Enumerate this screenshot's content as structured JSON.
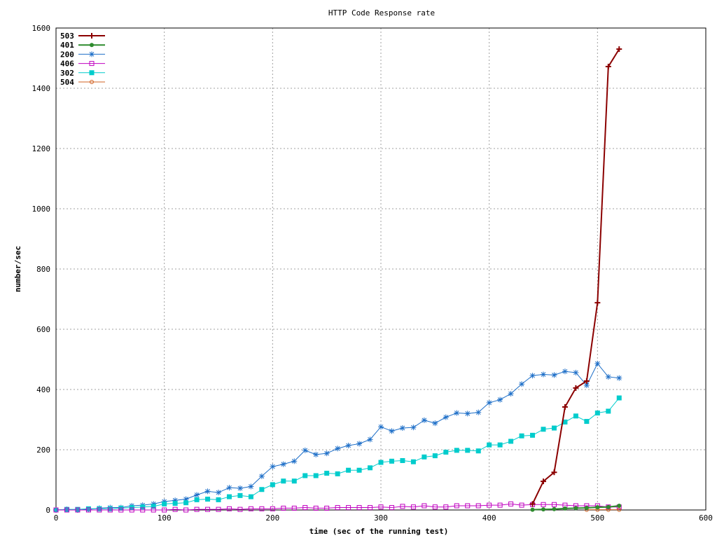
{
  "chart_data": {
    "type": "line",
    "title": "HTTP Code Response rate",
    "xlabel": "time (sec of the running test)",
    "ylabel": "number/sec",
    "xlim": [
      0,
      600
    ],
    "ylim": [
      0,
      1600
    ],
    "x_ticks": [
      0,
      100,
      200,
      300,
      400,
      500,
      600
    ],
    "y_ticks": [
      0,
      200,
      400,
      600,
      800,
      1000,
      1200,
      1400,
      1600
    ],
    "grid": true,
    "legend_position": "top-left",
    "series": [
      {
        "name": "503",
        "color": "#8b0000",
        "marker": "plus",
        "points": [
          [
            440,
            20
          ],
          [
            450,
            95
          ],
          [
            460,
            125
          ],
          [
            470,
            342
          ],
          [
            480,
            405
          ],
          [
            490,
            428
          ],
          [
            500,
            688
          ],
          [
            510,
            1472
          ],
          [
            520,
            1530
          ]
        ]
      },
      {
        "name": "401",
        "color": "#2e8b2e",
        "marker": "filled-circle",
        "points": [
          [
            440,
            1
          ],
          [
            450,
            2
          ],
          [
            460,
            3
          ],
          [
            470,
            5
          ],
          [
            480,
            6
          ],
          [
            490,
            7
          ],
          [
            500,
            9
          ],
          [
            510,
            10
          ],
          [
            520,
            14
          ]
        ]
      },
      {
        "name": "200",
        "color": "#1e6fc8",
        "marker": "star",
        "points": [
          [
            0,
            0
          ],
          [
            10,
            2
          ],
          [
            20,
            0
          ],
          [
            30,
            2
          ],
          [
            40,
            6
          ],
          [
            50,
            8
          ],
          [
            60,
            8
          ],
          [
            70,
            14
          ],
          [
            80,
            16
          ],
          [
            90,
            20
          ],
          [
            100,
            28
          ],
          [
            110,
            32
          ],
          [
            120,
            36
          ],
          [
            130,
            50
          ],
          [
            140,
            62
          ],
          [
            150,
            58
          ],
          [
            160,
            74
          ],
          [
            170,
            72
          ],
          [
            180,
            78
          ],
          [
            190,
            112
          ],
          [
            200,
            144
          ],
          [
            210,
            152
          ],
          [
            220,
            162
          ],
          [
            230,
            198
          ],
          [
            240,
            184
          ],
          [
            250,
            188
          ],
          [
            260,
            204
          ],
          [
            270,
            214
          ],
          [
            280,
            220
          ],
          [
            290,
            234
          ],
          [
            300,
            276
          ],
          [
            310,
            262
          ],
          [
            320,
            272
          ],
          [
            330,
            274
          ],
          [
            340,
            298
          ],
          [
            350,
            288
          ],
          [
            360,
            308
          ],
          [
            370,
            322
          ],
          [
            380,
            320
          ],
          [
            390,
            324
          ],
          [
            400,
            356
          ],
          [
            410,
            366
          ],
          [
            420,
            386
          ],
          [
            430,
            418
          ],
          [
            440,
            446
          ],
          [
            450,
            450
          ],
          [
            460,
            448
          ],
          [
            470,
            460
          ],
          [
            480,
            456
          ],
          [
            490,
            414
          ],
          [
            500,
            486
          ],
          [
            510,
            442
          ],
          [
            520,
            438
          ]
        ]
      },
      {
        "name": "406",
        "color": "#c000c0",
        "marker": "open-square",
        "points": [
          [
            0,
            0
          ],
          [
            10,
            0
          ],
          [
            20,
            0
          ],
          [
            30,
            0
          ],
          [
            40,
            0
          ],
          [
            50,
            0
          ],
          [
            60,
            0
          ],
          [
            70,
            0
          ],
          [
            80,
            0
          ],
          [
            90,
            0
          ],
          [
            100,
            0
          ],
          [
            110,
            2
          ],
          [
            120,
            0
          ],
          [
            130,
            2
          ],
          [
            140,
            2
          ],
          [
            150,
            2
          ],
          [
            160,
            4
          ],
          [
            170,
            2
          ],
          [
            180,
            4
          ],
          [
            190,
            4
          ],
          [
            200,
            4
          ],
          [
            210,
            6
          ],
          [
            220,
            6
          ],
          [
            230,
            8
          ],
          [
            240,
            6
          ],
          [
            250,
            6
          ],
          [
            260,
            8
          ],
          [
            270,
            8
          ],
          [
            280,
            8
          ],
          [
            290,
            8
          ],
          [
            300,
            10
          ],
          [
            310,
            8
          ],
          [
            320,
            12
          ],
          [
            330,
            10
          ],
          [
            340,
            14
          ],
          [
            350,
            10
          ],
          [
            360,
            10
          ],
          [
            370,
            14
          ],
          [
            380,
            14
          ],
          [
            390,
            14
          ],
          [
            400,
            16
          ],
          [
            410,
            16
          ],
          [
            420,
            20
          ],
          [
            430,
            16
          ],
          [
            440,
            18
          ],
          [
            450,
            18
          ],
          [
            460,
            18
          ],
          [
            470,
            16
          ],
          [
            480,
            14
          ],
          [
            490,
            14
          ],
          [
            500,
            14
          ],
          [
            510,
            10
          ],
          [
            520,
            10
          ]
        ]
      },
      {
        "name": "302",
        "color": "#00cccc",
        "marker": "filled-square",
        "points": [
          [
            0,
            0
          ],
          [
            10,
            2
          ],
          [
            20,
            2
          ],
          [
            30,
            4
          ],
          [
            40,
            4
          ],
          [
            50,
            4
          ],
          [
            60,
            6
          ],
          [
            70,
            8
          ],
          [
            80,
            10
          ],
          [
            90,
            12
          ],
          [
            100,
            20
          ],
          [
            110,
            22
          ],
          [
            120,
            24
          ],
          [
            130,
            34
          ],
          [
            140,
            36
          ],
          [
            150,
            34
          ],
          [
            160,
            44
          ],
          [
            170,
            48
          ],
          [
            180,
            44
          ],
          [
            190,
            68
          ],
          [
            200,
            84
          ],
          [
            210,
            96
          ],
          [
            220,
            96
          ],
          [
            230,
            114
          ],
          [
            240,
            114
          ],
          [
            250,
            122
          ],
          [
            260,
            120
          ],
          [
            270,
            132
          ],
          [
            280,
            132
          ],
          [
            290,
            140
          ],
          [
            300,
            158
          ],
          [
            310,
            162
          ],
          [
            320,
            164
          ],
          [
            330,
            160
          ],
          [
            340,
            176
          ],
          [
            350,
            180
          ],
          [
            360,
            192
          ],
          [
            370,
            198
          ],
          [
            380,
            198
          ],
          [
            390,
            196
          ],
          [
            400,
            216
          ],
          [
            410,
            216
          ],
          [
            420,
            228
          ],
          [
            430,
            246
          ],
          [
            440,
            248
          ],
          [
            450,
            268
          ],
          [
            460,
            272
          ],
          [
            470,
            292
          ],
          [
            480,
            312
          ],
          [
            490,
            294
          ],
          [
            500,
            322
          ],
          [
            510,
            328
          ],
          [
            520,
            372
          ]
        ]
      },
      {
        "name": "504",
        "color": "#d06020",
        "marker": "open-circle",
        "points": [
          [
            490,
            1
          ],
          [
            500,
            1
          ],
          [
            510,
            1
          ],
          [
            520,
            1
          ]
        ]
      }
    ]
  }
}
